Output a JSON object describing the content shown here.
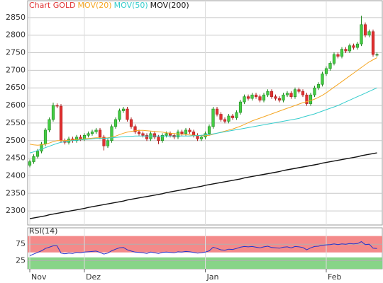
{
  "chart_data": [
    {
      "type": "candlestick",
      "title": "Chart GOLD",
      "title_color": "#e03030",
      "up_color": "#44cc44",
      "down_color": "#e03030",
      "candles": [
        [
          2430,
          2446,
          2424,
          2440
        ],
        [
          2440,
          2461,
          2434,
          2455
        ],
        [
          2455,
          2476,
          2449,
          2470
        ],
        [
          2470,
          2496,
          2464,
          2490
        ],
        [
          2490,
          2536,
          2484,
          2530
        ],
        [
          2530,
          2566,
          2524,
          2560
        ],
        [
          2560,
          2608,
          2554,
          2600
        ],
        [
          2600,
          2606,
          2592,
          2598
        ],
        [
          2598,
          2604,
          2494,
          2500
        ],
        [
          2500,
          2506,
          2489,
          2495
        ],
        [
          2495,
          2511,
          2489,
          2505
        ],
        [
          2505,
          2511,
          2494,
          2500
        ],
        [
          2500,
          2516,
          2494,
          2510
        ],
        [
          2510,
          2516,
          2499,
          2505
        ],
        [
          2505,
          2521,
          2499,
          2515
        ],
        [
          2515,
          2526,
          2509,
          2520
        ],
        [
          2520,
          2531,
          2514,
          2525
        ],
        [
          2525,
          2536,
          2519,
          2530
        ],
        [
          2530,
          2536,
          2504,
          2510
        ],
        [
          2510,
          2516,
          2472,
          2485
        ],
        [
          2485,
          2506,
          2479,
          2500
        ],
        [
          2500,
          2546,
          2494,
          2540
        ],
        [
          2540,
          2566,
          2534,
          2560
        ],
        [
          2560,
          2591,
          2554,
          2585
        ],
        [
          2585,
          2596,
          2579,
          2590
        ],
        [
          2590,
          2596,
          2554,
          2560
        ],
        [
          2560,
          2566,
          2534,
          2540
        ],
        [
          2540,
          2546,
          2519,
          2525
        ],
        [
          2525,
          2531,
          2514,
          2520
        ],
        [
          2520,
          2526,
          2509,
          2515
        ],
        [
          2515,
          2521,
          2499,
          2505
        ],
        [
          2505,
          2526,
          2499,
          2520
        ],
        [
          2520,
          2526,
          2504,
          2510
        ],
        [
          2510,
          2516,
          2490,
          2500
        ],
        [
          2500,
          2521,
          2494,
          2515
        ],
        [
          2515,
          2526,
          2509,
          2520
        ],
        [
          2520,
          2526,
          2509,
          2515
        ],
        [
          2515,
          2521,
          2504,
          2510
        ],
        [
          2510,
          2531,
          2504,
          2525
        ],
        [
          2525,
          2531,
          2514,
          2520
        ],
        [
          2520,
          2536,
          2514,
          2530
        ],
        [
          2530,
          2536,
          2519,
          2525
        ],
        [
          2525,
          2531,
          2509,
          2515
        ],
        [
          2515,
          2521,
          2499,
          2505
        ],
        [
          2505,
          2516,
          2499,
          2510
        ],
        [
          2510,
          2526,
          2504,
          2520
        ],
        [
          2520,
          2546,
          2514,
          2540
        ],
        [
          2540,
          2596,
          2534,
          2590
        ],
        [
          2590,
          2596,
          2569,
          2575
        ],
        [
          2575,
          2581,
          2554,
          2560
        ],
        [
          2560,
          2566,
          2549,
          2555
        ],
        [
          2555,
          2576,
          2549,
          2570
        ],
        [
          2570,
          2576,
          2559,
          2565
        ],
        [
          2565,
          2586,
          2559,
          2580
        ],
        [
          2580,
          2616,
          2574,
          2610
        ],
        [
          2610,
          2631,
          2604,
          2625
        ],
        [
          2625,
          2631,
          2614,
          2620
        ],
        [
          2620,
          2636,
          2614,
          2630
        ],
        [
          2630,
          2636,
          2619,
          2625
        ],
        [
          2625,
          2631,
          2609,
          2615
        ],
        [
          2615,
          2636,
          2609,
          2630
        ],
        [
          2630,
          2646,
          2624,
          2640
        ],
        [
          2640,
          2646,
          2619,
          2625
        ],
        [
          2625,
          2631,
          2614,
          2620
        ],
        [
          2620,
          2626,
          2609,
          2615
        ],
        [
          2615,
          2636,
          2609,
          2630
        ],
        [
          2630,
          2641,
          2624,
          2635
        ],
        [
          2635,
          2641,
          2619,
          2625
        ],
        [
          2625,
          2651,
          2619,
          2645
        ],
        [
          2645,
          2651,
          2634,
          2640
        ],
        [
          2640,
          2646,
          2624,
          2630
        ],
        [
          2630,
          2636,
          2599,
          2605
        ],
        [
          2605,
          2636,
          2599,
          2630
        ],
        [
          2630,
          2656,
          2624,
          2650
        ],
        [
          2650,
          2666,
          2644,
          2660
        ],
        [
          2660,
          2696,
          2654,
          2690
        ],
        [
          2690,
          2711,
          2684,
          2705
        ],
        [
          2705,
          2726,
          2699,
          2720
        ],
        [
          2720,
          2751,
          2714,
          2745
        ],
        [
          2745,
          2751,
          2734,
          2740
        ],
        [
          2740,
          2766,
          2734,
          2760
        ],
        [
          2760,
          2766,
          2749,
          2755
        ],
        [
          2755,
          2776,
          2749,
          2770
        ],
        [
          2770,
          2776,
          2759,
          2765
        ],
        [
          2765,
          2781,
          2759,
          2775
        ],
        [
          2775,
          2855,
          2769,
          2830
        ],
        [
          2830,
          2836,
          2794,
          2800
        ],
        [
          2800,
          2816,
          2794,
          2810
        ],
        [
          2810,
          2816,
          2739,
          2745
        ],
        [
          2745,
          2751,
          2739,
          2745
        ]
      ],
      "series": [
        {
          "name": "MOV(20)",
          "color": "#f5a623",
          "values": [
            2490,
            2488,
            2487,
            2488,
            2490,
            2493,
            2497,
            2500,
            2500,
            2500,
            2501,
            2502,
            2503,
            2504,
            2505,
            2506,
            2507,
            2508,
            2508,
            2507,
            2508,
            2510,
            2513,
            2517,
            2521,
            2524,
            2526,
            2528,
            2529,
            2529,
            2528,
            2527,
            2526,
            2525,
            2524,
            2522,
            2521,
            2520,
            2519,
            2518,
            2517,
            2516,
            2515,
            2515,
            2514,
            2514,
            2515,
            2518,
            2521,
            2524,
            2527,
            2530,
            2533,
            2537,
            2541,
            2546,
            2551,
            2556,
            2560,
            2564,
            2568,
            2572,
            2576,
            2580,
            2584,
            2588,
            2592,
            2596,
            2600,
            2604,
            2608,
            2611,
            2614,
            2618,
            2623,
            2629,
            2636,
            2644,
            2652,
            2660,
            2668,
            2676,
            2684,
            2692,
            2700,
            2708,
            2716,
            2724,
            2730,
            2736
          ]
        },
        {
          "name": "MOV(50)",
          "color": "#33cccc",
          "values": [
            2465,
            2468,
            2472,
            2476,
            2480,
            2484,
            2488,
            2492,
            2495,
            2497,
            2499,
            2500,
            2501,
            2502,
            2503,
            2504,
            2505,
            2506,
            2506,
            2506,
            2507,
            2508,
            2509,
            2510,
            2511,
            2512,
            2512,
            2513,
            2513,
            2513,
            2513,
            2513,
            2513,
            2513,
            2513,
            2513,
            2513,
            2513,
            2513,
            2513,
            2513,
            2513,
            2514,
            2514,
            2515,
            2516,
            2517,
            2519,
            2521,
            2523,
            2525,
            2527,
            2529,
            2531,
            2533,
            2535,
            2537,
            2539,
            2541,
            2543,
            2545,
            2547,
            2549,
            2551,
            2553,
            2555,
            2557,
            2559,
            2561,
            2563,
            2567,
            2570,
            2573,
            2576,
            2580,
            2584,
            2588,
            2592,
            2596,
            2600,
            2605,
            2610,
            2615,
            2620,
            2625,
            2630,
            2635,
            2640,
            2645,
            2650
          ]
        },
        {
          "name": "MOV(200)",
          "color": "#111111",
          "values": [
            2278,
            2280,
            2282,
            2284,
            2286,
            2289,
            2291,
            2293,
            2295,
            2297,
            2299,
            2301,
            2303,
            2305,
            2307,
            2310,
            2312,
            2314,
            2316,
            2318,
            2320,
            2322,
            2324,
            2326,
            2328,
            2331,
            2333,
            2335,
            2337,
            2339,
            2341,
            2343,
            2345,
            2347,
            2349,
            2352,
            2354,
            2356,
            2358,
            2360,
            2362,
            2364,
            2366,
            2368,
            2370,
            2373,
            2375,
            2377,
            2379,
            2381,
            2383,
            2385,
            2387,
            2389,
            2391,
            2394,
            2396,
            2398,
            2400,
            2402,
            2404,
            2406,
            2408,
            2410,
            2412,
            2415,
            2417,
            2419,
            2421,
            2423,
            2425,
            2427,
            2429,
            2431,
            2433,
            2436,
            2438,
            2440,
            2442,
            2444,
            2446,
            2448,
            2450,
            2452,
            2454,
            2457,
            2459,
            2461,
            2463,
            2465
          ]
        }
      ],
      "ylim": [
        2260,
        2898
      ],
      "yticks": [
        2300,
        2350,
        2400,
        2450,
        2500,
        2550,
        2600,
        2650,
        2700,
        2750,
        2800,
        2850
      ],
      "grid": true
    },
    {
      "type": "line",
      "title": "RSI(14)",
      "color": "#2233cc",
      "categories": [
        "Nov",
        null,
        null,
        null,
        null,
        null,
        null,
        null,
        null,
        null,
        null,
        null,
        null,
        null,
        "Dez",
        null,
        null,
        null,
        null,
        null,
        null,
        null,
        null,
        null,
        null,
        null,
        null,
        null,
        null,
        null,
        null,
        null,
        null,
        null,
        null,
        null,
        null,
        null,
        null,
        null,
        null,
        null,
        null,
        null,
        null,
        "Jan",
        null,
        null,
        null,
        null,
        null,
        null,
        null,
        null,
        null,
        null,
        null,
        null,
        null,
        null,
        null,
        null,
        null,
        null,
        null,
        null,
        null,
        null,
        null,
        null,
        null,
        null,
        null,
        null,
        null,
        null,
        "Feb",
        null,
        null,
        null,
        null,
        null,
        null,
        null,
        null,
        null,
        null,
        null,
        null,
        null
      ],
      "values": [
        40,
        45,
        50,
        55,
        62,
        66,
        70,
        70,
        48,
        46,
        48,
        47,
        50,
        49,
        51,
        52,
        53,
        54,
        50,
        45,
        48,
        55,
        60,
        64,
        65,
        58,
        54,
        51,
        50,
        49,
        47,
        51,
        49,
        47,
        50,
        51,
        50,
        49,
        52,
        51,
        53,
        52,
        50,
        48,
        49,
        51,
        55,
        66,
        62,
        58,
        57,
        60,
        59,
        62,
        66,
        68,
        67,
        68,
        66,
        64,
        67,
        69,
        65,
        64,
        63,
        66,
        67,
        64,
        68,
        67,
        65,
        58,
        64,
        68,
        69,
        72,
        73,
        74,
        76,
        74,
        76,
        75,
        77,
        76,
        77,
        83,
        74,
        75,
        63,
        62
      ],
      "bands": [
        {
          "range": [
            50,
            100
          ],
          "color": "#f48a8a"
        },
        {
          "range": [
            0,
            35
          ],
          "color": "#88d488"
        }
      ],
      "ylim": [
        0,
        125
      ],
      "yticks": [
        25,
        75
      ],
      "grid": true
    }
  ]
}
